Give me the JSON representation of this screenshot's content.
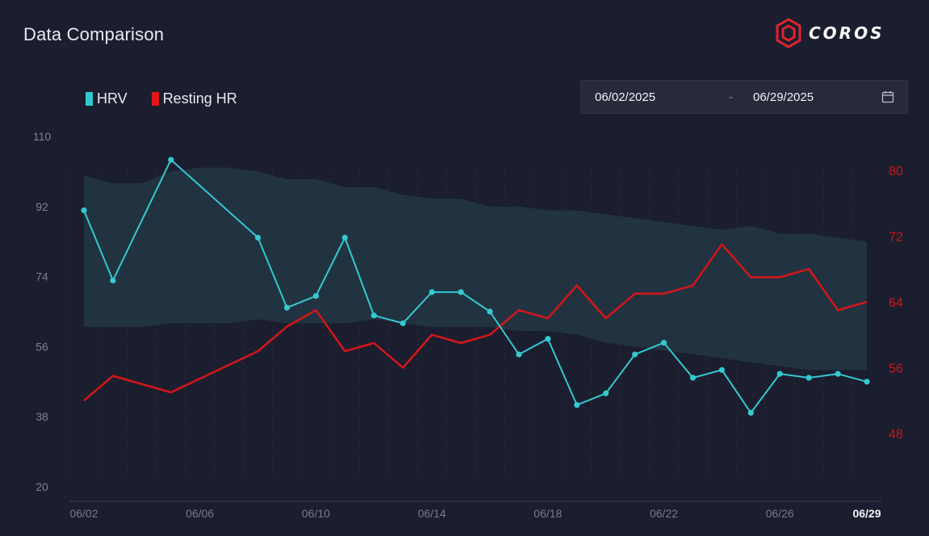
{
  "header": {
    "title": "Data Comparison",
    "brand": "COROS",
    "brand_icon": "coros-hexagon-logo"
  },
  "date_range": {
    "start": "06/02/2025",
    "separator": "-",
    "end": "06/29/2025",
    "icon": "calendar-icon"
  },
  "colors": {
    "background": "#1b1e2e",
    "hrv": "#33c9cf",
    "resting_hr": "#d0161a",
    "band": "#223442",
    "axis_left": "#7d8293",
    "axis_right": "#c8161c"
  },
  "chart_data": {
    "type": "line",
    "title": "",
    "legend": [
      {
        "name": "HRV",
        "color": "#33c9cf"
      },
      {
        "name": "Resting HR",
        "color": "#d0161a"
      }
    ],
    "legend_placement": "top-left",
    "x_ticks": [
      "06/02",
      "06/06",
      "06/10",
      "06/14",
      "06/18",
      "06/22",
      "06/26",
      "06/29"
    ],
    "x_days": [
      2,
      3,
      4,
      5,
      6,
      7,
      8,
      9,
      10,
      11,
      12,
      13,
      14,
      15,
      16,
      17,
      18,
      19,
      20,
      21,
      22,
      23,
      24,
      25,
      26,
      27,
      28,
      29
    ],
    "y_left": {
      "ticks": [
        110,
        92,
        74,
        56,
        38,
        20
      ],
      "range": [
        20,
        110
      ]
    },
    "y_right": {
      "ticks": [
        80,
        72,
        64,
        56,
        48
      ],
      "range": [
        44.5,
        84.1
      ]
    },
    "series": [
      {
        "name": "HRV",
        "axis": "left",
        "marker": true,
        "points": [
          [
            2,
            91
          ],
          [
            3,
            73
          ],
          [
            5,
            104
          ],
          [
            8,
            84
          ],
          [
            9,
            66
          ],
          [
            10,
            69
          ],
          [
            11,
            84
          ],
          [
            12,
            64
          ],
          [
            13,
            62
          ],
          [
            14,
            70
          ],
          [
            15,
            70
          ],
          [
            16,
            65
          ],
          [
            17,
            54
          ],
          [
            18,
            58
          ],
          [
            19,
            41
          ],
          [
            20,
            44
          ],
          [
            21,
            54
          ],
          [
            22,
            57
          ],
          [
            23,
            48
          ],
          [
            24,
            50
          ],
          [
            25,
            39
          ],
          [
            26,
            49
          ],
          [
            27,
            48
          ],
          [
            28,
            49
          ],
          [
            29,
            47
          ]
        ]
      },
      {
        "name": "Resting HR",
        "axis": "right",
        "marker": false,
        "points": [
          [
            2,
            52
          ],
          [
            3,
            55
          ],
          [
            5,
            53
          ],
          [
            8,
            58
          ],
          [
            9,
            61
          ],
          [
            10,
            63
          ],
          [
            11,
            58
          ],
          [
            12,
            59
          ],
          [
            13,
            56
          ],
          [
            14,
            60
          ],
          [
            15,
            59
          ],
          [
            16,
            60
          ],
          [
            17,
            63
          ],
          [
            18,
            62
          ],
          [
            19,
            66
          ],
          [
            20,
            62
          ],
          [
            21,
            65
          ],
          [
            22,
            65
          ],
          [
            23,
            66
          ],
          [
            24,
            71
          ],
          [
            25,
            67
          ],
          [
            26,
            67
          ],
          [
            27,
            68
          ],
          [
            28,
            63
          ],
          [
            29,
            64
          ]
        ]
      }
    ],
    "normal_range_band": {
      "axis": "left",
      "upper": [
        [
          2,
          100
        ],
        [
          3,
          98
        ],
        [
          4,
          98
        ],
        [
          5,
          101
        ],
        [
          6,
          102
        ],
        [
          7,
          102
        ],
        [
          8,
          101
        ],
        [
          9,
          99
        ],
        [
          10,
          99
        ],
        [
          11,
          97
        ],
        [
          12,
          97
        ],
        [
          13,
          95
        ],
        [
          14,
          94
        ],
        [
          15,
          94
        ],
        [
          16,
          92
        ],
        [
          17,
          92
        ],
        [
          18,
          91
        ],
        [
          19,
          91
        ],
        [
          20,
          90
        ],
        [
          21,
          89
        ],
        [
          22,
          88
        ],
        [
          23,
          87
        ],
        [
          24,
          86
        ],
        [
          25,
          87
        ],
        [
          26,
          85
        ],
        [
          27,
          85
        ],
        [
          28,
          84
        ],
        [
          29,
          83
        ]
      ],
      "lower": [
        [
          2,
          61
        ],
        [
          3,
          61
        ],
        [
          4,
          61
        ],
        [
          5,
          62
        ],
        [
          6,
          62
        ],
        [
          7,
          62
        ],
        [
          8,
          63
        ],
        [
          9,
          62
        ],
        [
          10,
          62
        ],
        [
          11,
          62
        ],
        [
          12,
          63
        ],
        [
          13,
          62
        ],
        [
          14,
          61
        ],
        [
          15,
          61
        ],
        [
          16,
          61
        ],
        [
          17,
          60
        ],
        [
          18,
          60
        ],
        [
          19,
          59
        ],
        [
          20,
          57
        ],
        [
          21,
          56
        ],
        [
          22,
          55
        ],
        [
          23,
          54
        ],
        [
          24,
          53
        ],
        [
          25,
          52
        ],
        [
          26,
          51
        ],
        [
          27,
          50
        ],
        [
          28,
          50
        ],
        [
          29,
          50
        ]
      ]
    },
    "grid": "vertical dotted lines",
    "x_highlight": "06/29"
  }
}
